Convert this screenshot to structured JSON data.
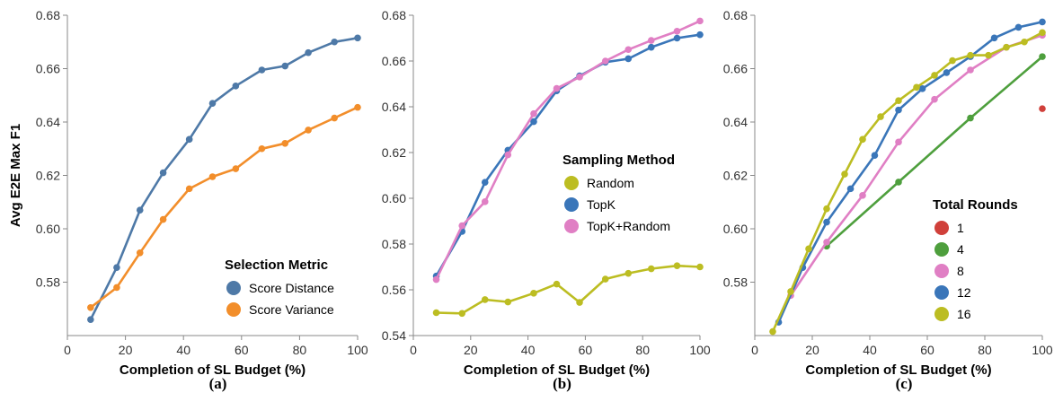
{
  "chart_data": [
    {
      "type": "line",
      "panel_label": "(a)",
      "xlabel": "Completion of SL Budget (%)",
      "ylabel": "Avg E2E Max F1",
      "xlim": [
        0,
        100
      ],
      "ylim": [
        0.56,
        0.68
      ],
      "x_ticks": [
        0,
        20,
        40,
        60,
        80,
        100
      ],
      "y_ticks": [
        0.58,
        0.6,
        0.62,
        0.64,
        0.66,
        0.68
      ],
      "legend_title": "Selection Metric",
      "legend_position": "bottom-right",
      "series": [
        {
          "name": "Score Distance",
          "color": "#4e79a7",
          "points": [
            [
              8,
              0.566
            ],
            [
              17,
              0.5855
            ],
            [
              25,
              0.607
            ],
            [
              33,
              0.621
            ],
            [
              42,
              0.6335
            ],
            [
              50,
              0.647
            ],
            [
              58,
              0.6535
            ],
            [
              67,
              0.6595
            ],
            [
              75,
              0.661
            ],
            [
              83,
              0.666
            ],
            [
              92,
              0.67
            ],
            [
              100,
              0.6715
            ]
          ]
        },
        {
          "name": "Score Variance",
          "color": "#f28e2b",
          "points": [
            [
              8,
              0.5705
            ],
            [
              17,
              0.578
            ],
            [
              25,
              0.591
            ],
            [
              33,
              0.6035
            ],
            [
              42,
              0.615
            ],
            [
              50,
              0.6195
            ],
            [
              58,
              0.6225
            ],
            [
              67,
              0.63
            ],
            [
              75,
              0.632
            ],
            [
              83,
              0.637
            ],
            [
              92,
              0.6415
            ],
            [
              100,
              0.6455
            ]
          ]
        }
      ]
    },
    {
      "type": "line",
      "panel_label": "(b)",
      "xlabel": "Completion of SL Budget (%)",
      "ylabel": "",
      "xlim": [
        0,
        100
      ],
      "ylim": [
        0.54,
        0.68
      ],
      "x_ticks": [
        0,
        20,
        40,
        60,
        80,
        100
      ],
      "y_ticks": [
        0.54,
        0.56,
        0.58,
        0.6,
        0.62,
        0.64,
        0.66,
        0.68
      ],
      "legend_title": "Sampling Method",
      "legend_position": "center-right",
      "series": [
        {
          "name": "Random",
          "color": "#bcbd22",
          "points": [
            [
              8,
              0.55
            ],
            [
              17,
              0.5497
            ],
            [
              25,
              0.5557
            ],
            [
              33,
              0.5547
            ],
            [
              42,
              0.5585
            ],
            [
              50,
              0.5625
            ],
            [
              58,
              0.5545
            ],
            [
              67,
              0.5647
            ],
            [
              75,
              0.5672
            ],
            [
              83,
              0.5692
            ],
            [
              92,
              0.5705
            ],
            [
              100,
              0.57
            ]
          ]
        },
        {
          "name": "TopK",
          "color": "#3a76b9",
          "points": [
            [
              8,
              0.566
            ],
            [
              17,
              0.5855
            ],
            [
              25,
              0.607
            ],
            [
              33,
              0.621
            ],
            [
              42,
              0.6335
            ],
            [
              50,
              0.647
            ],
            [
              58,
              0.6535
            ],
            [
              67,
              0.6595
            ],
            [
              75,
              0.661
            ],
            [
              83,
              0.666
            ],
            [
              92,
              0.67
            ],
            [
              100,
              0.6715
            ]
          ]
        },
        {
          "name": "TopK+Random",
          "color": "#e07fc4",
          "points": [
            [
              8,
              0.5645
            ],
            [
              17,
              0.588
            ],
            [
              25,
              0.5985
            ],
            [
              33,
              0.619
            ],
            [
              42,
              0.637
            ],
            [
              50,
              0.648
            ],
            [
              58,
              0.653
            ],
            [
              67,
              0.66
            ],
            [
              75,
              0.665
            ],
            [
              83,
              0.669
            ],
            [
              92,
              0.673
            ],
            [
              100,
              0.6775
            ]
          ]
        }
      ]
    },
    {
      "type": "line",
      "panel_label": "(c)",
      "xlabel": "Completion of SL Budget (%)",
      "ylabel": "",
      "xlim": [
        0,
        100
      ],
      "ylim": [
        0.56,
        0.68
      ],
      "x_ticks": [
        0,
        20,
        40,
        60,
        80,
        100
      ],
      "y_ticks": [
        0.58,
        0.6,
        0.62,
        0.64,
        0.66,
        0.68
      ],
      "legend_title": "Total Rounds",
      "legend_position": "bottom-right",
      "series": [
        {
          "name": "1",
          "color": "#d0403a",
          "points": [
            [
              100,
              0.645
            ]
          ]
        },
        {
          "name": "4",
          "color": "#4e9f3d",
          "points": [
            [
              25,
              0.5935
            ],
            [
              50,
              0.6175
            ],
            [
              75,
              0.6415
            ],
            [
              100,
              0.6645
            ]
          ]
        },
        {
          "name": "8",
          "color": "#e07fc4",
          "points": [
            [
              12.5,
              0.575
            ],
            [
              25,
              0.595
            ],
            [
              37.5,
              0.6125
            ],
            [
              50,
              0.6325
            ],
            [
              62.5,
              0.6485
            ],
            [
              75,
              0.6595
            ],
            [
              87.5,
              0.668
            ],
            [
              100,
              0.6725
            ]
          ]
        },
        {
          "name": "12",
          "color": "#3a76b9",
          "points": [
            [
              8.3,
              0.565
            ],
            [
              16.7,
              0.5855
            ],
            [
              25,
              0.6025
            ],
            [
              33.3,
              0.615
            ],
            [
              41.7,
              0.6275
            ],
            [
              50,
              0.6445
            ],
            [
              58.3,
              0.6525
            ],
            [
              66.7,
              0.6585
            ],
            [
              75,
              0.6645
            ],
            [
              83.3,
              0.6715
            ],
            [
              91.7,
              0.6755
            ],
            [
              100,
              0.6775
            ]
          ]
        },
        {
          "name": "16",
          "color": "#bcbd22",
          "points": [
            [
              6.25,
              0.5615
            ],
            [
              12.5,
              0.5765
            ],
            [
              18.75,
              0.5925
            ],
            [
              25,
              0.6075
            ],
            [
              31.25,
              0.6205
            ],
            [
              37.5,
              0.6335
            ],
            [
              43.75,
              0.642
            ],
            [
              50,
              0.648
            ],
            [
              56.25,
              0.653
            ],
            [
              62.5,
              0.6575
            ],
            [
              68.75,
              0.663
            ],
            [
              75,
              0.665
            ],
            [
              81.25,
              0.665
            ],
            [
              87.5,
              0.668
            ],
            [
              93.75,
              0.67
            ],
            [
              100,
              0.6735
            ]
          ]
        }
      ]
    }
  ]
}
